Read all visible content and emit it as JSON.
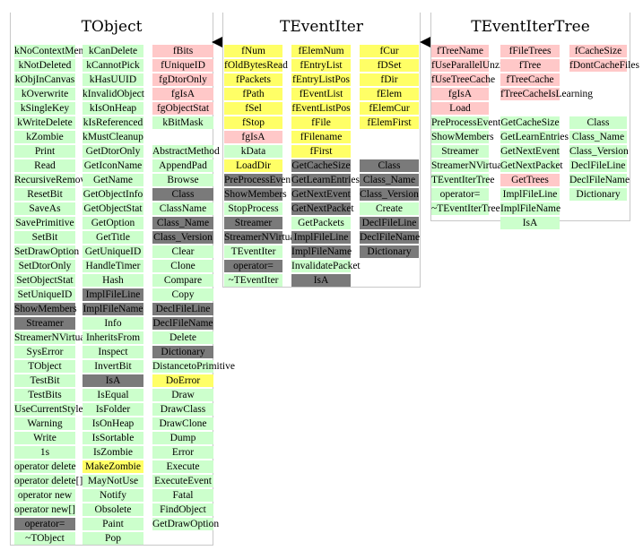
{
  "colors": {
    "public": "#ccffcc",
    "private": "#ffc8c8",
    "protected": "#ffff66",
    "inherited": "#7a7a7a",
    "border": "#c8c8c8"
  },
  "classes": [
    {
      "name": "TObject",
      "columns": [
        [
          [
            "kNoContextMenu",
            "g"
          ],
          [
            "kNotDeleted",
            "g"
          ],
          [
            "kObjInCanvas",
            "g"
          ],
          [
            "kOverwrite",
            "g"
          ],
          [
            "kSingleKey",
            "g"
          ],
          [
            "kWriteDelete",
            "g"
          ],
          [
            "kZombie",
            "g"
          ],
          [
            "Print",
            "g"
          ],
          [
            "Read",
            "g"
          ],
          [
            "RecursiveRemove",
            "g"
          ],
          [
            "ResetBit",
            "g"
          ],
          [
            "SaveAs",
            "g"
          ],
          [
            "SavePrimitive",
            "g"
          ],
          [
            "SetBit",
            "g"
          ],
          [
            "SetDrawOption",
            "g"
          ],
          [
            "SetDtorOnly",
            "g"
          ],
          [
            "SetObjectStat",
            "g"
          ],
          [
            "SetUniqueID",
            "g"
          ],
          [
            "ShowMembers",
            "d"
          ],
          [
            "Streamer",
            "d"
          ],
          [
            "StreamerNVirtual",
            "g"
          ],
          [
            "SysError",
            "g"
          ],
          [
            "TObject",
            "g"
          ],
          [
            "TestBit",
            "g"
          ],
          [
            "TestBits",
            "g"
          ],
          [
            "UseCurrentStyle",
            "g"
          ],
          [
            "Warning",
            "g"
          ],
          [
            "Write",
            "g"
          ],
          [
            "1s",
            "g"
          ],
          [
            "operator delete",
            "g"
          ],
          [
            "operator delete[]",
            "g"
          ],
          [
            "operator new",
            "g"
          ],
          [
            "operator new[]",
            "g"
          ],
          [
            "operator=",
            "d"
          ],
          [
            "~TObject",
            "g"
          ]
        ],
        [
          [
            "kCanDelete",
            "g"
          ],
          [
            "kCannotPick",
            "g"
          ],
          [
            "kHasUUID",
            "g"
          ],
          [
            "kInvalidObject",
            "g"
          ],
          [
            "kIsOnHeap",
            "g"
          ],
          [
            "kIsReferenced",
            "g"
          ],
          [
            "kMustCleanup",
            "g"
          ],
          [
            "GetDtorOnly",
            "g"
          ],
          [
            "GetIconName",
            "g"
          ],
          [
            "GetName",
            "g"
          ],
          [
            "GetObjectInfo",
            "g"
          ],
          [
            "GetObjectStat",
            "g"
          ],
          [
            "GetOption",
            "g"
          ],
          [
            "GetTitle",
            "g"
          ],
          [
            "GetUniqueID",
            "g"
          ],
          [
            "HandleTimer",
            "g"
          ],
          [
            "Hash",
            "g"
          ],
          [
            "ImplFileLine",
            "d"
          ],
          [
            "ImplFileName",
            "d"
          ],
          [
            "Info",
            "g"
          ],
          [
            "InheritsFrom",
            "g"
          ],
          [
            "Inspect",
            "g"
          ],
          [
            "InvertBit",
            "g"
          ],
          [
            "IsA",
            "d"
          ],
          [
            "IsEqual",
            "g"
          ],
          [
            "IsFolder",
            "g"
          ],
          [
            "IsOnHeap",
            "g"
          ],
          [
            "IsSortable",
            "g"
          ],
          [
            "IsZombie",
            "g"
          ],
          [
            "MakeZombie",
            "y"
          ],
          [
            "MayNotUse",
            "g"
          ],
          [
            "Notify",
            "g"
          ],
          [
            "Obsolete",
            "g"
          ],
          [
            "Paint",
            "g"
          ],
          [
            "Pop",
            "g"
          ]
        ],
        [
          [
            "fBits",
            "p"
          ],
          [
            "fUniqueID",
            "p"
          ],
          [
            "fgDtorOnly",
            "p"
          ],
          [
            "fgIsA",
            "p"
          ],
          [
            "fgObjectStat",
            "p"
          ],
          [
            "kBitMask",
            "g"
          ],
          [
            "",
            "w"
          ],
          [
            "AbstractMethod",
            "g"
          ],
          [
            "AppendPad",
            "g"
          ],
          [
            "Browse",
            "g"
          ],
          [
            "Class",
            "d"
          ],
          [
            "ClassName",
            "g"
          ],
          [
            "Class_Name",
            "d"
          ],
          [
            "Class_Version",
            "d"
          ],
          [
            "Clear",
            "g"
          ],
          [
            "Clone",
            "g"
          ],
          [
            "Compare",
            "g"
          ],
          [
            "Copy",
            "g"
          ],
          [
            "DeclFileLine",
            "d"
          ],
          [
            "DeclFileName",
            "d"
          ],
          [
            "Delete",
            "g"
          ],
          [
            "Dictionary",
            "d"
          ],
          [
            "DistancetoPrimitive",
            "g"
          ],
          [
            "DoError",
            "y"
          ],
          [
            "Draw",
            "g"
          ],
          [
            "DrawClass",
            "g"
          ],
          [
            "DrawClone",
            "g"
          ],
          [
            "Dump",
            "g"
          ],
          [
            "Error",
            "g"
          ],
          [
            "Execute",
            "g"
          ],
          [
            "ExecuteEvent",
            "g"
          ],
          [
            "Fatal",
            "g"
          ],
          [
            "FindObject",
            "g"
          ],
          [
            "GetDrawOption",
            "g"
          ]
        ]
      ]
    },
    {
      "name": "TEventIter",
      "columns": [
        [
          [
            "fNum",
            "y"
          ],
          [
            "fOldBytesRead",
            "y"
          ],
          [
            "fPackets",
            "y"
          ],
          [
            "fPath",
            "y"
          ],
          [
            "fSel",
            "y"
          ],
          [
            "fStop",
            "y"
          ],
          [
            "fgIsA",
            "p"
          ],
          [
            "kData",
            "g"
          ],
          [
            "LoadDir",
            "y"
          ],
          [
            "PreProcessEvent",
            "d"
          ],
          [
            "ShowMembers",
            "d"
          ],
          [
            "StopProcess",
            "g"
          ],
          [
            "Streamer",
            "d"
          ],
          [
            "StreamerNVirtual",
            "d"
          ],
          [
            "TEventIter",
            "g"
          ],
          [
            "operator=",
            "d"
          ],
          [
            "~TEventIter",
            "g"
          ]
        ],
        [
          [
            "fElemNum",
            "y"
          ],
          [
            "fEntryList",
            "y"
          ],
          [
            "fEntryListPos",
            "y"
          ],
          [
            "fEventList",
            "y"
          ],
          [
            "fEventListPos",
            "y"
          ],
          [
            "fFile",
            "y"
          ],
          [
            "fFilename",
            "y"
          ],
          [
            "fFirst",
            "y"
          ],
          [
            "GetCacheSize",
            "d"
          ],
          [
            "GetLearnEntries",
            "d"
          ],
          [
            "GetNextEvent",
            "d"
          ],
          [
            "GetNextPacket",
            "d"
          ],
          [
            "GetPackets",
            "g"
          ],
          [
            "ImplFileLine",
            "d"
          ],
          [
            "ImplFileName",
            "d"
          ],
          [
            "InvalidatePacket",
            "g"
          ],
          [
            "IsA",
            "d"
          ]
        ],
        [
          [
            "fCur",
            "y"
          ],
          [
            "fDSet",
            "y"
          ],
          [
            "fDir",
            "y"
          ],
          [
            "fElem",
            "y"
          ],
          [
            "fElemCur",
            "y"
          ],
          [
            "fElemFirst",
            "y"
          ],
          [
            "",
            "w"
          ],
          [
            "",
            "w"
          ],
          [
            "Class",
            "d"
          ],
          [
            "Class_Name",
            "d"
          ],
          [
            "Class_Version",
            "d"
          ],
          [
            "Create",
            "g"
          ],
          [
            "DeclFileLine",
            "d"
          ],
          [
            "DeclFileName",
            "d"
          ],
          [
            "Dictionary",
            "d"
          ]
        ]
      ]
    },
    {
      "name": "TEventIterTree",
      "columns": [
        [
          [
            "fTreeName",
            "p"
          ],
          [
            "fUseParallelUnzip",
            "p"
          ],
          [
            "fUseTreeCache",
            "p"
          ],
          [
            "fgIsA",
            "p"
          ],
          [
            "Load",
            "p"
          ],
          [
            "PreProcessEvent",
            "g"
          ],
          [
            "ShowMembers",
            "g"
          ],
          [
            "Streamer",
            "g"
          ],
          [
            "StreamerNVirtual",
            "g"
          ],
          [
            "TEventIterTree",
            "g"
          ],
          [
            "operator=",
            "g"
          ],
          [
            "~TEventIterTree",
            "g"
          ]
        ],
        [
          [
            "fFileTrees",
            "p"
          ],
          [
            "fTree",
            "p"
          ],
          [
            "fTreeCache",
            "p"
          ],
          [
            "fTreeCacheIsLearning",
            "p"
          ],
          [
            "",
            "w"
          ],
          [
            "GetCacheSize",
            "g"
          ],
          [
            "GetLearnEntries",
            "g"
          ],
          [
            "GetNextEvent",
            "g"
          ],
          [
            "GetNextPacket",
            "g"
          ],
          [
            "GetTrees",
            "p"
          ],
          [
            "ImplFileLine",
            "g"
          ],
          [
            "ImplFileName",
            "g"
          ],
          [
            "IsA",
            "g"
          ]
        ],
        [
          [
            "fCacheSize",
            "p"
          ],
          [
            "fDontCacheFiles",
            "p"
          ],
          [
            "",
            "w"
          ],
          [
            "",
            "w"
          ],
          [
            "",
            "w"
          ],
          [
            "Class",
            "g"
          ],
          [
            "Class_Name",
            "g"
          ],
          [
            "Class_Version",
            "g"
          ],
          [
            "DeclFileLine",
            "g"
          ],
          [
            "DeclFileName",
            "g"
          ],
          [
            "Dictionary",
            "g"
          ]
        ]
      ]
    }
  ]
}
